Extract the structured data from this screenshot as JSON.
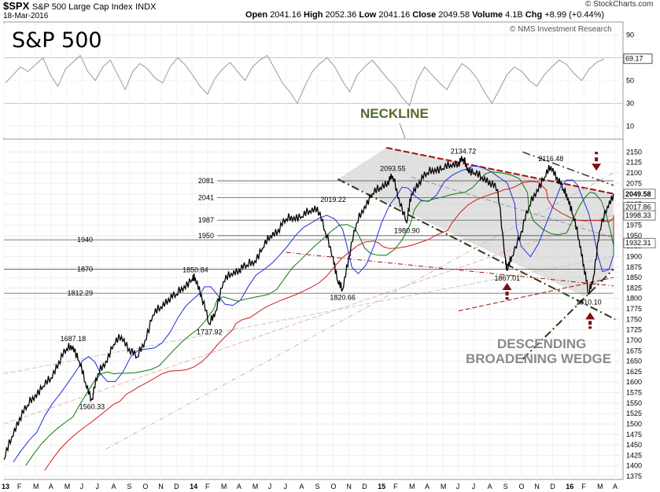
{
  "header": {
    "symbol": "$SPX",
    "name": "S&P 500 Large Cap Index",
    "exchange": "INDX",
    "date": "18-Mar-2016",
    "open_label": "Open",
    "open": "2041.16",
    "high_label": "High",
    "high": "2052.36",
    "low_label": "Low",
    "low": "2041.16",
    "close_label": "Close",
    "close": "2049.58",
    "volume_label": "Volume",
    "volume": "4.1B",
    "chg_label": "Chg",
    "chg": "+8.99 (+0.44%)",
    "watermark": "© StockCharts.com",
    "credit": "© NMS Investment Research",
    "title_big": "S&P 500"
  },
  "callouts": {
    "neckline": "NECKLINE",
    "wedge_line1": "DESCENDING",
    "wedge_line2": "BROADENING WEDGE"
  },
  "colors": {
    "price": "#000000",
    "ma_blue": "#1f2fd8",
    "ma_green": "#0a7a0a",
    "ma_red": "#d11a1a",
    "wedge_fill": "#c8c8c8",
    "olive": "#2e3a14",
    "dark_red_line": "#a01010",
    "arrow": "#7a1010",
    "rsi_line": "#9a9a9a",
    "gray_text": "#8a8a8a",
    "olive_text": "#556b2f"
  },
  "chart_data": [
    {
      "type": "line",
      "panel": "rsi",
      "ylim": [
        0,
        100
      ],
      "yticks": [
        10,
        30,
        50,
        70,
        90
      ],
      "last_value": "69.17",
      "series": [
        {
          "values": [
            48,
            55,
            62,
            58,
            64,
            70,
            55,
            45,
            60,
            66,
            72,
            58,
            50,
            62,
            68,
            55,
            42,
            58,
            65,
            60,
            52,
            48,
            62,
            70,
            64,
            55,
            45,
            38,
            52,
            60,
            66,
            58,
            50,
            62,
            68,
            72,
            60,
            48,
            40,
            30,
            45,
            58,
            65,
            70,
            62,
            50,
            40,
            55,
            62,
            68,
            60,
            52,
            45,
            35,
            28,
            50,
            62,
            55,
            48,
            42,
            55,
            65,
            60,
            52,
            40,
            30,
            42,
            55,
            62,
            58,
            50,
            45,
            55,
            62,
            68,
            64,
            56,
            50,
            60,
            66,
            69
          ]
        }
      ]
    },
    {
      "type": "line",
      "panel": "price",
      "ylim": [
        1375,
        2175
      ],
      "yticks": [
        1375,
        1400,
        1425,
        1450,
        1475,
        1500,
        1525,
        1550,
        1575,
        1600,
        1625,
        1650,
        1675,
        1700,
        1725,
        1750,
        1775,
        1800,
        1825,
        1850,
        1875,
        1900,
        1925,
        1950,
        1975,
        2000,
        2025,
        2050,
        2075,
        2100,
        2125,
        2150
      ],
      "xticks": [
        "13",
        "F",
        "M",
        "A",
        "M",
        "J",
        "J",
        "A",
        "S",
        "O",
        "N",
        "D",
        "14",
        "F",
        "M",
        "A",
        "M",
        "J",
        "J",
        "A",
        "S",
        "O",
        "N",
        "D",
        "15",
        "F",
        "M",
        "A",
        "M",
        "J",
        "J",
        "A",
        "S",
        "O",
        "N",
        "D",
        "16",
        "F",
        "M",
        "A"
      ],
      "ref_levels": [
        {
          "label": "2081",
          "value": 2081
        },
        {
          "label": "2041",
          "value": 2041
        },
        {
          "label": "1987",
          "value": 1987
        },
        {
          "label": "1950",
          "value": 1950
        },
        {
          "label": "1940",
          "value": 1940
        },
        {
          "label": "1870",
          "value": 1870
        },
        {
          "label": "1812.29",
          "value": 1812.29
        }
      ],
      "right_labels": [
        {
          "label": "2049.58",
          "value": 2049.58
        },
        {
          "label": "2017.86",
          "value": 2017.86
        },
        {
          "label": "1998.33",
          "value": 1998.33
        },
        {
          "label": "1932.31",
          "value": 1932.31
        }
      ],
      "annotations": [
        {
          "label": "1687.18",
          "x": 4.4,
          "y": 1687.18
        },
        {
          "label": "1560.33",
          "x": 5.6,
          "y": 1560.33
        },
        {
          "label": "1737.92",
          "x": 13.1,
          "y": 1737.92
        },
        {
          "label": "1850.84",
          "x": 12.2,
          "y": 1850.84
        },
        {
          "label": "2019.22",
          "x": 21.0,
          "y": 2019.22
        },
        {
          "label": "1820.66",
          "x": 21.6,
          "y": 1820.66
        },
        {
          "label": "2093.55",
          "x": 24.8,
          "y": 2093.55
        },
        {
          "label": "1980.90",
          "x": 25.7,
          "y": 1980.9
        },
        {
          "label": "2134.72",
          "x": 29.3,
          "y": 2134.72
        },
        {
          "label": "1867.01",
          "x": 32.1,
          "y": 1867.01
        },
        {
          "label": "2116.48",
          "x": 34.9,
          "y": 2116.48
        },
        {
          "label": "1810.10",
          "x": 37.3,
          "y": 1810.1
        }
      ],
      "series": [
        {
          "values_x": [
            0,
            0.5,
            1,
            1.5,
            2,
            2.5,
            3,
            3.5,
            4,
            4.4,
            4.8,
            5.2,
            5.6,
            6,
            6.5,
            7,
            7.5,
            8,
            8.5,
            9,
            9.5,
            10,
            10.5,
            11,
            11.5,
            12,
            12.2,
            12.6,
            13.1,
            13.5,
            14,
            14.5,
            15,
            15.5,
            16,
            16.5,
            17,
            17.5,
            18,
            18.5,
            19,
            19.5,
            20,
            20.5,
            21,
            21.3,
            21.6,
            22,
            22.5,
            23,
            23.5,
            24,
            24.5,
            24.8,
            25.2,
            25.7,
            26,
            26.5,
            27,
            27.5,
            28,
            28.5,
            29,
            29.3,
            29.6,
            30,
            30.5,
            31,
            31.5,
            32,
            32.1,
            32.4,
            33,
            33.5,
            34,
            34.5,
            34.9,
            35.3,
            35.7,
            36,
            36.3,
            36.7,
            37,
            37.3,
            37.6,
            38,
            38.5,
            38.9
          ],
          "values_y": [
            1415,
            1470,
            1515,
            1545,
            1570,
            1590,
            1610,
            1650,
            1680,
            1687,
            1650,
            1600,
            1560,
            1620,
            1650,
            1690,
            1710,
            1680,
            1660,
            1700,
            1760,
            1780,
            1800,
            1810,
            1830,
            1845,
            1850,
            1810,
            1738,
            1770,
            1840,
            1860,
            1870,
            1880,
            1890,
            1920,
            1950,
            1965,
            1990,
            1995,
            1995,
            2010,
            2019,
            1960,
            1900,
            1840,
            1821,
            1900,
            1980,
            2020,
            2050,
            2065,
            2080,
            2093,
            2040,
            1981,
            2050,
            2080,
            2100,
            2110,
            2110,
            2120,
            2125,
            2134,
            2110,
            2100,
            2090,
            2080,
            2060,
            1895,
            1867,
            1900,
            1960,
            2020,
            2060,
            2090,
            2116,
            2090,
            2060,
            2040,
            2000,
            1940,
            1880,
            1810,
            1850,
            1960,
            2020,
            2049.58
          ]
        }
      ]
    }
  ]
}
